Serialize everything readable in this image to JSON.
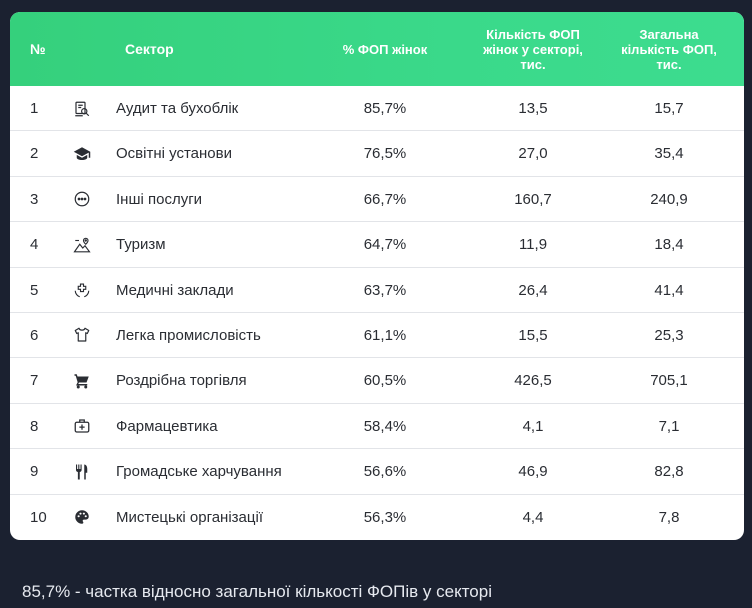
{
  "header": {
    "num": "№",
    "sector": "Сектор",
    "pct": "% ФОП жінок",
    "women": "Кількість ФОП\nжінок у секторі,\nтис.",
    "total": "Загальна\nкількість ФОП,\nтис."
  },
  "rows": [
    {
      "num": "1",
      "icon": "audit-icon",
      "sector": "Аудит та бухоблік",
      "pct": "85,7%",
      "women": "13,5",
      "total": "15,7"
    },
    {
      "num": "2",
      "icon": "graduation-cap-icon",
      "sector": "Освітні установи",
      "pct": "76,5%",
      "women": "27,0",
      "total": "35,4"
    },
    {
      "num": "3",
      "icon": "more-circle-icon",
      "sector": "Інші послуги",
      "pct": "66,7%",
      "women": "160,7",
      "total": "240,9"
    },
    {
      "num": "4",
      "icon": "travel-mountain-icon",
      "sector": "Туризм",
      "pct": "64,7%",
      "women": "11,9",
      "total": "18,4"
    },
    {
      "num": "5",
      "icon": "medical-hands-icon",
      "sector": "Медичні заклади",
      "pct": "63,7%",
      "women": "26,4",
      "total": "41,4"
    },
    {
      "num": "6",
      "icon": "tshirt-icon",
      "sector": "Легка промисловість",
      "pct": "61,1%",
      "women": "15,5",
      "total": "25,3"
    },
    {
      "num": "7",
      "icon": "shopping-cart-icon",
      "sector": "Роздрібна торгівля",
      "pct": "60,5%",
      "women": "426,5",
      "total": "705,1"
    },
    {
      "num": "8",
      "icon": "medical-kit-icon",
      "sector": "Фармацевтика",
      "pct": "58,4%",
      "women": "4,1",
      "total": "7,1"
    },
    {
      "num": "9",
      "icon": "fork-knife-icon",
      "sector": "Громадське харчування",
      "pct": "56,6%",
      "women": "46,9",
      "total": "82,8"
    },
    {
      "num": "10",
      "icon": "palette-icon",
      "sector": "Мистецькі організації",
      "pct": "56,3%",
      "women": "4,4",
      "total": "7,8"
    }
  ],
  "footnote": "85,7% - частка відносно загальної кількості ФОПів у секторі",
  "colors": {
    "header_green": "#3ad98a",
    "background": "#1b2130",
    "text": "#2a2d33"
  }
}
